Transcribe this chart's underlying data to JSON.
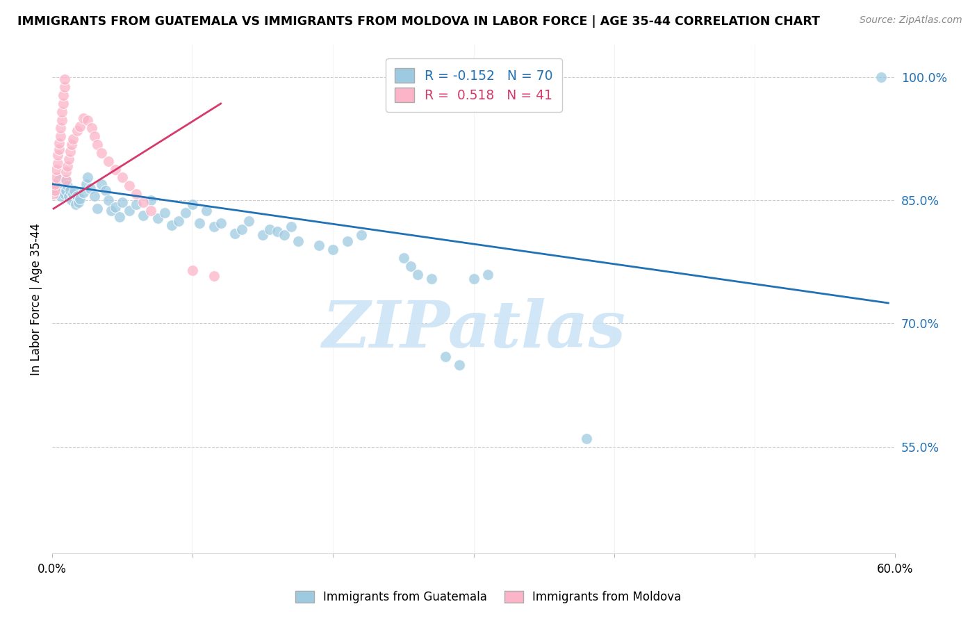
{
  "title": "IMMIGRANTS FROM GUATEMALA VS IMMIGRANTS FROM MOLDOVA IN LABOR FORCE | AGE 35-44 CORRELATION CHART",
  "source": "Source: ZipAtlas.com",
  "ylabel": "In Labor Force | Age 35-44",
  "x_min": 0.0,
  "x_max": 0.6,
  "y_min": 0.42,
  "y_max": 1.04,
  "y_ticks": [
    0.55,
    0.7,
    0.85,
    1.0
  ],
  "y_tick_labels": [
    "55.0%",
    "70.0%",
    "85.0%",
    "100.0%"
  ],
  "x_ticks": [
    0.0,
    0.1,
    0.2,
    0.3,
    0.4,
    0.5,
    0.6
  ],
  "x_tick_labels": [
    "0.0%",
    "",
    "",
    "",
    "",
    "",
    "60.0%"
  ],
  "color_blue": "#9ecae1",
  "color_pink": "#fcb4c8",
  "color_blue_line": "#2171b5",
  "color_pink_line": "#d63a6a",
  "watermark": "ZIPatlas",
  "watermark_color": "#cce4f5",
  "legend_blue_r": "R = -0.152",
  "legend_blue_n": "N = 70",
  "legend_pink_r": "R =  0.518",
  "legend_pink_n": "N = 41",
  "scatter_blue_x": [
    0.002,
    0.003,
    0.004,
    0.005,
    0.006,
    0.007,
    0.008,
    0.009,
    0.01,
    0.01,
    0.011,
    0.012,
    0.013,
    0.014,
    0.015,
    0.016,
    0.017,
    0.018,
    0.019,
    0.02,
    0.022,
    0.024,
    0.025,
    0.027,
    0.03,
    0.032,
    0.035,
    0.038,
    0.04,
    0.042,
    0.045,
    0.048,
    0.05,
    0.055,
    0.06,
    0.065,
    0.07,
    0.075,
    0.08,
    0.085,
    0.09,
    0.095,
    0.1,
    0.105,
    0.11,
    0.115,
    0.12,
    0.13,
    0.135,
    0.14,
    0.15,
    0.155,
    0.16,
    0.165,
    0.17,
    0.175,
    0.19,
    0.2,
    0.21,
    0.22,
    0.25,
    0.255,
    0.26,
    0.27,
    0.28,
    0.29,
    0.3,
    0.31,
    0.38,
    0.59
  ],
  "scatter_blue_y": [
    0.865,
    0.87,
    0.86,
    0.875,
    0.855,
    0.865,
    0.87,
    0.858,
    0.875,
    0.862,
    0.868,
    0.855,
    0.862,
    0.85,
    0.858,
    0.862,
    0.845,
    0.855,
    0.848,
    0.852,
    0.86,
    0.87,
    0.878,
    0.865,
    0.855,
    0.84,
    0.87,
    0.862,
    0.85,
    0.838,
    0.842,
    0.83,
    0.848,
    0.838,
    0.845,
    0.832,
    0.85,
    0.828,
    0.835,
    0.82,
    0.825,
    0.835,
    0.845,
    0.822,
    0.838,
    0.818,
    0.822,
    0.81,
    0.815,
    0.825,
    0.808,
    0.815,
    0.812,
    0.808,
    0.818,
    0.8,
    0.795,
    0.79,
    0.8,
    0.808,
    0.78,
    0.77,
    0.76,
    0.755,
    0.66,
    0.65,
    0.755,
    0.76,
    0.56,
    1.0
  ],
  "scatter_pink_x": [
    0.001,
    0.002,
    0.002,
    0.003,
    0.003,
    0.004,
    0.004,
    0.005,
    0.005,
    0.006,
    0.006,
    0.007,
    0.007,
    0.008,
    0.008,
    0.009,
    0.009,
    0.01,
    0.01,
    0.011,
    0.012,
    0.013,
    0.014,
    0.015,
    0.018,
    0.02,
    0.022,
    0.025,
    0.028,
    0.03,
    0.032,
    0.035,
    0.04,
    0.045,
    0.05,
    0.055,
    0.06,
    0.065,
    0.07,
    0.1,
    0.115
  ],
  "scatter_pink_y": [
    0.858,
    0.862,
    0.87,
    0.878,
    0.888,
    0.895,
    0.905,
    0.912,
    0.92,
    0.928,
    0.938,
    0.948,
    0.958,
    0.968,
    0.978,
    0.988,
    0.998,
    0.875,
    0.885,
    0.892,
    0.9,
    0.91,
    0.918,
    0.925,
    0.935,
    0.94,
    0.95,
    0.948,
    0.938,
    0.928,
    0.918,
    0.908,
    0.898,
    0.888,
    0.878,
    0.868,
    0.858,
    0.848,
    0.838,
    0.765,
    0.758
  ],
  "blue_trend_x": [
    0.0,
    0.595
  ],
  "blue_trend_y": [
    0.87,
    0.725
  ],
  "pink_trend_x": [
    0.001,
    0.12
  ],
  "pink_trend_y": [
    0.84,
    0.968
  ],
  "bottom_label_guatemala": "Immigrants from Guatemala",
  "bottom_label_moldova": "Immigrants from Moldova"
}
